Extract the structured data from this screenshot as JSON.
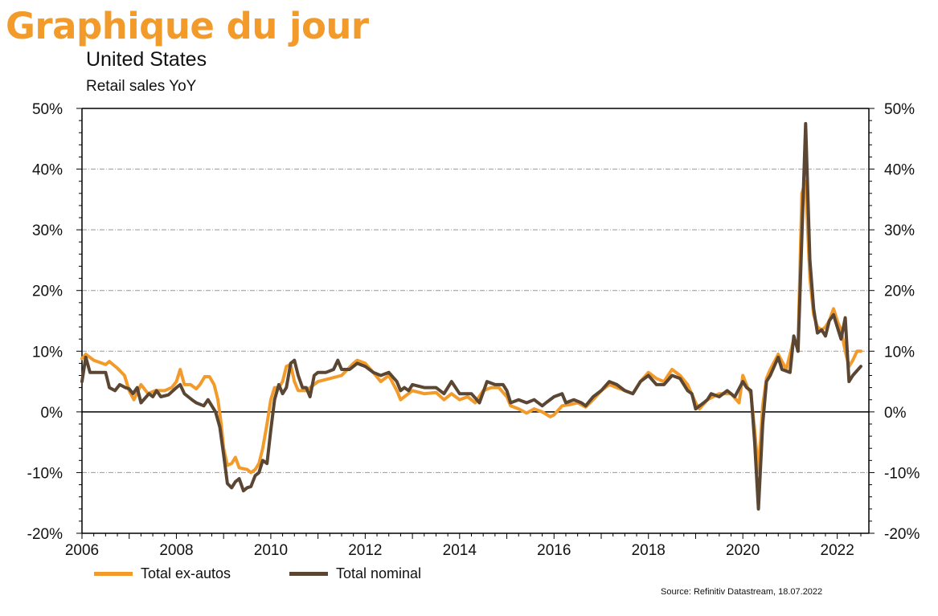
{
  "brand": {
    "title": "Graphique du jour"
  },
  "chart_data": {
    "type": "line",
    "title": "United States",
    "subtitle": "Retail sales YoY",
    "source": "Source: Refinitiv Datastream, 18.07.2022",
    "xlim": [
      2006.0,
      2022.67
    ],
    "ylim": [
      -20,
      50
    ],
    "x_ticks": [
      2006,
      2008,
      2010,
      2012,
      2014,
      2016,
      2018,
      2020,
      2022
    ],
    "x_tick_labels": [
      "2006",
      "2008",
      "2010",
      "2012",
      "2014",
      "2016",
      "2018",
      "2020",
      "2022"
    ],
    "y_ticks": [
      -20,
      -10,
      0,
      10,
      20,
      30,
      40,
      50
    ],
    "y_tick_labels": [
      "-20%",
      "-10%",
      "0%",
      "10%",
      "20%",
      "30%",
      "40%",
      "50%"
    ],
    "grid": true,
    "legend_position": "bottom-left",
    "colors": {
      "ex_autos": "#f29b2b",
      "nominal": "#5a4632",
      "axis": "#000000",
      "grid": "#999999"
    },
    "series": [
      {
        "name": "Total ex-autos",
        "color": "#f29b2b",
        "points": [
          [
            2006.0,
            8.8
          ],
          [
            2006.08,
            9.5
          ],
          [
            2006.25,
            8.5
          ],
          [
            2006.5,
            7.8
          ],
          [
            2006.58,
            8.3
          ],
          [
            2006.75,
            7.2
          ],
          [
            2006.9,
            6.0
          ],
          [
            2007.0,
            3.5
          ],
          [
            2007.1,
            2.0
          ],
          [
            2007.25,
            4.5
          ],
          [
            2007.4,
            3.0
          ],
          [
            2007.55,
            3.5
          ],
          [
            2007.75,
            3.5
          ],
          [
            2007.9,
            4.0
          ],
          [
            2008.0,
            5.0
          ],
          [
            2008.08,
            7.0
          ],
          [
            2008.17,
            4.5
          ],
          [
            2008.3,
            4.5
          ],
          [
            2008.42,
            3.8
          ],
          [
            2008.5,
            4.5
          ],
          [
            2008.6,
            5.8
          ],
          [
            2008.7,
            5.8
          ],
          [
            2008.8,
            4.5
          ],
          [
            2008.88,
            2.0
          ],
          [
            2008.95,
            -2.0
          ],
          [
            2009.0,
            -6.0
          ],
          [
            2009.08,
            -8.8
          ],
          [
            2009.17,
            -8.5
          ],
          [
            2009.25,
            -7.5
          ],
          [
            2009.33,
            -9.2
          ],
          [
            2009.5,
            -9.5
          ],
          [
            2009.58,
            -10.0
          ],
          [
            2009.67,
            -9.5
          ],
          [
            2009.75,
            -8.5
          ],
          [
            2009.83,
            -6.0
          ],
          [
            2009.92,
            -2.0
          ],
          [
            2010.0,
            2.0
          ],
          [
            2010.08,
            4.0
          ],
          [
            2010.17,
            4.0
          ],
          [
            2010.25,
            5.0
          ],
          [
            2010.33,
            7.5
          ],
          [
            2010.42,
            7.8
          ],
          [
            2010.5,
            5.0
          ],
          [
            2010.58,
            3.5
          ],
          [
            2010.75,
            3.5
          ],
          [
            2010.83,
            4.0
          ],
          [
            2011.0,
            5.0
          ],
          [
            2011.25,
            5.5
          ],
          [
            2011.5,
            6.0
          ],
          [
            2011.75,
            8.0
          ],
          [
            2011.83,
            8.5
          ],
          [
            2012.0,
            8.0
          ],
          [
            2012.17,
            6.5
          ],
          [
            2012.33,
            5.0
          ],
          [
            2012.5,
            6.0
          ],
          [
            2012.67,
            3.5
          ],
          [
            2012.75,
            2.0
          ],
          [
            2012.83,
            2.5
          ],
          [
            2013.0,
            3.5
          ],
          [
            2013.25,
            3.0
          ],
          [
            2013.5,
            3.2
          ],
          [
            2013.67,
            2.0
          ],
          [
            2013.83,
            3.0
          ],
          [
            2014.0,
            2.0
          ],
          [
            2014.17,
            2.5
          ],
          [
            2014.33,
            1.5
          ],
          [
            2014.5,
            3.5
          ],
          [
            2014.67,
            4.0
          ],
          [
            2014.83,
            4.0
          ],
          [
            2015.0,
            2.5
          ],
          [
            2015.08,
            1.0
          ],
          [
            2015.25,
            0.5
          ],
          [
            2015.42,
            -0.2
          ],
          [
            2015.58,
            0.5
          ],
          [
            2015.75,
            0.0
          ],
          [
            2015.92,
            -0.8
          ],
          [
            2016.0,
            -0.5
          ],
          [
            2016.17,
            1.0
          ],
          [
            2016.33,
            1.2
          ],
          [
            2016.5,
            1.5
          ],
          [
            2016.67,
            0.8
          ],
          [
            2016.83,
            2.0
          ],
          [
            2017.0,
            3.5
          ],
          [
            2017.17,
            4.5
          ],
          [
            2017.33,
            4.0
          ],
          [
            2017.5,
            3.5
          ],
          [
            2017.67,
            3.0
          ],
          [
            2017.83,
            5.0
          ],
          [
            2018.0,
            6.5
          ],
          [
            2018.17,
            5.5
          ],
          [
            2018.33,
            5.0
          ],
          [
            2018.5,
            7.0
          ],
          [
            2018.67,
            6.0
          ],
          [
            2018.83,
            4.5
          ],
          [
            2019.0,
            1.5
          ],
          [
            2019.08,
            0.5
          ],
          [
            2019.25,
            2.0
          ],
          [
            2019.5,
            3.0
          ],
          [
            2019.75,
            3.0
          ],
          [
            2019.92,
            1.5
          ],
          [
            2020.0,
            6.0
          ],
          [
            2020.1,
            4.0
          ],
          [
            2020.17,
            3.0
          ],
          [
            2020.25,
            -3.0
          ],
          [
            2020.33,
            -10.0
          ],
          [
            2020.42,
            1.0
          ],
          [
            2020.5,
            5.5
          ],
          [
            2020.58,
            7.0
          ],
          [
            2020.75,
            9.5
          ],
          [
            2020.92,
            7.0
          ],
          [
            2021.0,
            9.5
          ],
          [
            2021.08,
            12.0
          ],
          [
            2021.17,
            11.0
          ],
          [
            2021.25,
            36.0
          ],
          [
            2021.33,
            38.0
          ],
          [
            2021.42,
            22.0
          ],
          [
            2021.5,
            16.0
          ],
          [
            2021.58,
            14.0
          ],
          [
            2021.67,
            13.5
          ],
          [
            2021.75,
            14.0
          ],
          [
            2021.83,
            15.0
          ],
          [
            2021.92,
            17.0
          ],
          [
            2022.0,
            15.0
          ],
          [
            2022.08,
            13.5
          ],
          [
            2022.17,
            10.0
          ],
          [
            2022.25,
            7.5
          ],
          [
            2022.33,
            8.5
          ],
          [
            2022.42,
            10.0
          ],
          [
            2022.5,
            10.0
          ]
        ]
      },
      {
        "name": "Total nominal",
        "color": "#5a4632",
        "points": [
          [
            2006.0,
            5.0
          ],
          [
            2006.08,
            9.0
          ],
          [
            2006.17,
            6.5
          ],
          [
            2006.33,
            6.5
          ],
          [
            2006.5,
            6.5
          ],
          [
            2006.58,
            4.0
          ],
          [
            2006.7,
            3.5
          ],
          [
            2006.8,
            4.5
          ],
          [
            2006.92,
            4.0
          ],
          [
            2007.0,
            3.8
          ],
          [
            2007.08,
            3.0
          ],
          [
            2007.17,
            4.0
          ],
          [
            2007.25,
            1.5
          ],
          [
            2007.42,
            3.0
          ],
          [
            2007.5,
            2.5
          ],
          [
            2007.58,
            3.5
          ],
          [
            2007.67,
            2.5
          ],
          [
            2007.83,
            2.8
          ],
          [
            2008.0,
            4.0
          ],
          [
            2008.08,
            4.5
          ],
          [
            2008.17,
            3.0
          ],
          [
            2008.25,
            2.5
          ],
          [
            2008.33,
            2.0
          ],
          [
            2008.42,
            1.5
          ],
          [
            2008.58,
            1.0
          ],
          [
            2008.67,
            2.0
          ],
          [
            2008.75,
            1.0
          ],
          [
            2008.83,
            0.0
          ],
          [
            2008.92,
            -2.5
          ],
          [
            2009.0,
            -7.0
          ],
          [
            2009.08,
            -11.8
          ],
          [
            2009.17,
            -12.5
          ],
          [
            2009.25,
            -11.5
          ],
          [
            2009.33,
            -11.0
          ],
          [
            2009.42,
            -13.0
          ],
          [
            2009.5,
            -12.5
          ],
          [
            2009.58,
            -12.3
          ],
          [
            2009.67,
            -10.5
          ],
          [
            2009.75,
            -10.0
          ],
          [
            2009.83,
            -8.0
          ],
          [
            2009.92,
            -8.5
          ],
          [
            2010.0,
            -3.0
          ],
          [
            2010.08,
            2.0
          ],
          [
            2010.17,
            4.5
          ],
          [
            2010.25,
            3.0
          ],
          [
            2010.33,
            4.0
          ],
          [
            2010.42,
            8.0
          ],
          [
            2010.5,
            8.5
          ],
          [
            2010.58,
            6.0
          ],
          [
            2010.67,
            4.0
          ],
          [
            2010.75,
            4.0
          ],
          [
            2010.83,
            2.5
          ],
          [
            2010.92,
            6.0
          ],
          [
            2011.0,
            6.5
          ],
          [
            2011.17,
            6.5
          ],
          [
            2011.33,
            7.0
          ],
          [
            2011.42,
            8.5
          ],
          [
            2011.5,
            7.0
          ],
          [
            2011.67,
            7.0
          ],
          [
            2011.75,
            7.5
          ],
          [
            2011.83,
            8.0
          ],
          [
            2012.0,
            7.5
          ],
          [
            2012.17,
            6.5
          ],
          [
            2012.33,
            6.0
          ],
          [
            2012.5,
            6.5
          ],
          [
            2012.67,
            5.0
          ],
          [
            2012.75,
            3.5
          ],
          [
            2012.83,
            4.0
          ],
          [
            2012.92,
            3.5
          ],
          [
            2013.0,
            4.5
          ],
          [
            2013.25,
            4.0
          ],
          [
            2013.5,
            4.0
          ],
          [
            2013.67,
            3.0
          ],
          [
            2013.83,
            5.0
          ],
          [
            2014.0,
            3.0
          ],
          [
            2014.17,
            3.0
          ],
          [
            2014.25,
            3.0
          ],
          [
            2014.42,
            1.5
          ],
          [
            2014.58,
            5.0
          ],
          [
            2014.75,
            4.5
          ],
          [
            2014.92,
            4.5
          ],
          [
            2015.0,
            3.5
          ],
          [
            2015.08,
            1.5
          ],
          [
            2015.25,
            2.0
          ],
          [
            2015.42,
            1.5
          ],
          [
            2015.58,
            2.0
          ],
          [
            2015.75,
            1.0
          ],
          [
            2015.83,
            1.5
          ],
          [
            2016.0,
            2.5
          ],
          [
            2016.17,
            3.0
          ],
          [
            2016.25,
            1.5
          ],
          [
            2016.42,
            2.0
          ],
          [
            2016.58,
            1.5
          ],
          [
            2016.67,
            1.0
          ],
          [
            2016.83,
            2.5
          ],
          [
            2017.0,
            3.5
          ],
          [
            2017.17,
            5.0
          ],
          [
            2017.33,
            4.5
          ],
          [
            2017.5,
            3.5
          ],
          [
            2017.67,
            3.0
          ],
          [
            2017.83,
            5.0
          ],
          [
            2018.0,
            6.0
          ],
          [
            2018.17,
            4.5
          ],
          [
            2018.33,
            4.5
          ],
          [
            2018.5,
            6.0
          ],
          [
            2018.67,
            5.5
          ],
          [
            2018.83,
            3.5
          ],
          [
            2018.92,
            3.0
          ],
          [
            2019.0,
            0.5
          ],
          [
            2019.17,
            1.5
          ],
          [
            2019.25,
            2.0
          ],
          [
            2019.33,
            3.0
          ],
          [
            2019.5,
            2.5
          ],
          [
            2019.67,
            3.5
          ],
          [
            2019.83,
            2.5
          ],
          [
            2020.0,
            5.0
          ],
          [
            2020.08,
            4.0
          ],
          [
            2020.17,
            3.5
          ],
          [
            2020.25,
            -5.0
          ],
          [
            2020.33,
            -16.0
          ],
          [
            2020.42,
            -2.0
          ],
          [
            2020.5,
            5.0
          ],
          [
            2020.58,
            6.0
          ],
          [
            2020.75,
            9.0
          ],
          [
            2020.83,
            7.0
          ],
          [
            2021.0,
            6.5
          ],
          [
            2021.08,
            12.5
          ],
          [
            2021.17,
            10.0
          ],
          [
            2021.33,
            47.5
          ],
          [
            2021.42,
            25.0
          ],
          [
            2021.5,
            17.0
          ],
          [
            2021.58,
            13.0
          ],
          [
            2021.67,
            13.5
          ],
          [
            2021.75,
            12.5
          ],
          [
            2021.83,
            15.0
          ],
          [
            2021.92,
            16.0
          ],
          [
            2022.0,
            14.0
          ],
          [
            2022.08,
            12.0
          ],
          [
            2022.17,
            15.5
          ],
          [
            2022.25,
            5.0
          ],
          [
            2022.33,
            6.0
          ],
          [
            2022.5,
            7.5
          ]
        ]
      }
    ]
  }
}
